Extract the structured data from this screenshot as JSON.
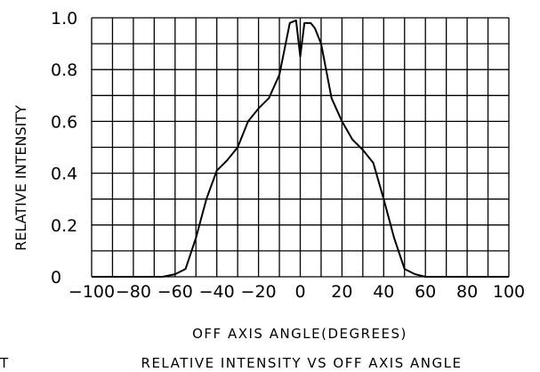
{
  "chart_data": {
    "type": "line",
    "xlabel": "OFF AXIS ANGLE(DEGREES)",
    "ylabel": "RELATIVE INTENSITY",
    "caption": "RELATIVE INTENSITY VS OFF AXIS ANGLE",
    "corner_mark": "T",
    "xlim": [
      -100,
      100
    ],
    "ylim": [
      0,
      1.0
    ],
    "x_ticks": [
      -100,
      -80,
      -60,
      -40,
      -20,
      0,
      20,
      40,
      60,
      80,
      100
    ],
    "x_tick_labels": [
      "−100",
      "−80",
      "−60",
      "−40",
      "−20",
      "0",
      "20",
      "40",
      "60",
      "80",
      "100"
    ],
    "y_ticks": [
      0,
      0.2,
      0.4,
      0.6,
      0.8,
      1.0
    ],
    "y_tick_labels": [
      "0",
      "0.2",
      "0.4",
      "0.6",
      "0.8",
      "1.0"
    ],
    "grid": true,
    "colors": {
      "line": "#000000",
      "grid": "#000000",
      "background": "#ffffff"
    },
    "series": [
      {
        "x": [
          -100,
          -66,
          -60,
          -55,
          -50,
          -45,
          -40,
          -35,
          -30,
          -25,
          -20,
          -15,
          -10,
          -7,
          -5,
          -2,
          0,
          2,
          5,
          7,
          10,
          15,
          20,
          25,
          30,
          35,
          40,
          45,
          50,
          55,
          60,
          66,
          100
        ],
        "y": [
          0,
          0,
          0.01,
          0.03,
          0.15,
          0.3,
          0.41,
          0.45,
          0.5,
          0.6,
          0.65,
          0.69,
          0.78,
          0.9,
          0.98,
          0.99,
          0.85,
          0.98,
          0.98,
          0.96,
          0.9,
          0.69,
          0.6,
          0.53,
          0.49,
          0.44,
          0.3,
          0.15,
          0.03,
          0.01,
          0,
          0,
          0
        ]
      }
    ]
  }
}
